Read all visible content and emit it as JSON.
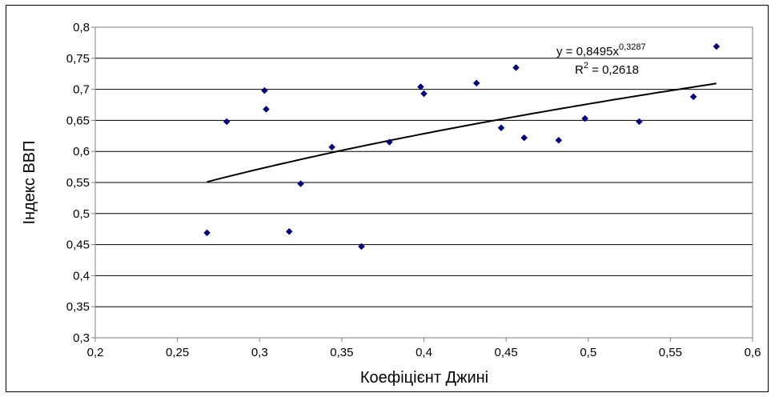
{
  "chart_data": {
    "type": "scatter",
    "title": "",
    "xlabel": "Коефіцієнт Джині",
    "ylabel": "Індекс ВВП",
    "xlim": [
      0.2,
      0.6
    ],
    "ylim": [
      0.3,
      0.8
    ],
    "x_ticks": [
      "0,2",
      "0,25",
      "0,3",
      "0,35",
      "0,4",
      "0,45",
      "0,5",
      "0,55",
      "0,6"
    ],
    "y_ticks": [
      "0,3",
      "0,35",
      "0,4",
      "0,45",
      "0,5",
      "0,55",
      "0,6",
      "0,65",
      "0,7",
      "0,75",
      "0,8"
    ],
    "grid": "horizontal",
    "marker_color": "#00007f",
    "trendline_color": "#000000",
    "points": [
      {
        "x": 0.268,
        "y": 0.469
      },
      {
        "x": 0.28,
        "y": 0.648
      },
      {
        "x": 0.303,
        "y": 0.698
      },
      {
        "x": 0.304,
        "y": 0.668
      },
      {
        "x": 0.318,
        "y": 0.471
      },
      {
        "x": 0.325,
        "y": 0.548
      },
      {
        "x": 0.344,
        "y": 0.607
      },
      {
        "x": 0.362,
        "y": 0.447
      },
      {
        "x": 0.379,
        "y": 0.615
      },
      {
        "x": 0.398,
        "y": 0.704
      },
      {
        "x": 0.4,
        "y": 0.693
      },
      {
        "x": 0.432,
        "y": 0.71
      },
      {
        "x": 0.447,
        "y": 0.638
      },
      {
        "x": 0.456,
        "y": 0.735
      },
      {
        "x": 0.461,
        "y": 0.622
      },
      {
        "x": 0.482,
        "y": 0.618
      },
      {
        "x": 0.498,
        "y": 0.653
      },
      {
        "x": 0.531,
        "y": 0.648
      },
      {
        "x": 0.564,
        "y": 0.688
      },
      {
        "x": 0.578,
        "y": 0.769
      }
    ],
    "trendline": {
      "type": "power",
      "a": 0.8495,
      "b": 0.3287,
      "x_range": [
        0.268,
        0.578
      ],
      "equation_prefix": "y = 0,8495x",
      "equation_exponent": "0,3287",
      "r2_prefix": "R",
      "r2_exponent": "2",
      "r2_suffix": " = 0,2618"
    }
  }
}
